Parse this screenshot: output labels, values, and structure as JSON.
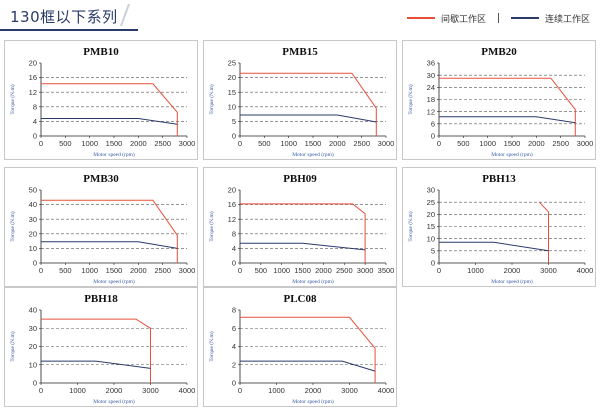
{
  "header": {
    "title": "130框以下系列",
    "legend": [
      {
        "label": "间歇工作区",
        "color": "#e8503a"
      },
      {
        "label": "连续工作区",
        "color": "#2a3a6b"
      }
    ]
  },
  "colors": {
    "intermittent": "#e8503a",
    "continuous": "#2a3a6b",
    "grid": "#555555"
  },
  "chart_data": [
    {
      "type": "line",
      "title": "PMB10",
      "xlabel": "Motor speed (rpm)",
      "ylabel": "Torque (N.m)",
      "xlim": [
        0,
        3000
      ],
      "ylim": [
        0,
        20
      ],
      "xticks": [
        0,
        500,
        1000,
        1500,
        2000,
        2500,
        3000
      ],
      "yticks": [
        0,
        4,
        8,
        12,
        16,
        20
      ],
      "hlines": [
        16,
        12,
        8,
        4
      ],
      "series": [
        {
          "name": "间歇工作区",
          "x": [
            0,
            2300,
            2800,
            2800
          ],
          "y": [
            14.3,
            14.3,
            6.5,
            0
          ]
        },
        {
          "name": "连续工作区",
          "x": [
            0,
            2000,
            2800
          ],
          "y": [
            4.8,
            4.8,
            3.2
          ]
        }
      ]
    },
    {
      "type": "line",
      "title": "PMB15",
      "xlabel": "Motor speed (rpm)",
      "ylabel": "Torque (N.m)",
      "xlim": [
        0,
        3000
      ],
      "ylim": [
        0,
        25
      ],
      "xticks": [
        0,
        500,
        1000,
        1500,
        2000,
        2500,
        3000
      ],
      "yticks": [
        0,
        5,
        10,
        15,
        20,
        25
      ],
      "hlines": [
        20,
        15,
        10,
        5
      ],
      "series": [
        {
          "name": "间歇工作区",
          "x": [
            0,
            2300,
            2800,
            2800
          ],
          "y": [
            21.5,
            21.5,
            9.5,
            0
          ]
        },
        {
          "name": "连续工作区",
          "x": [
            0,
            2000,
            2800
          ],
          "y": [
            7.2,
            7.2,
            4.8
          ]
        }
      ]
    },
    {
      "type": "line",
      "title": "PMB20",
      "xlabel": "Motor speed (rpm)",
      "ylabel": "Torque (N.m)",
      "xlim": [
        0,
        3000
      ],
      "ylim": [
        0,
        36
      ],
      "xticks": [
        0,
        500,
        1000,
        1500,
        2000,
        2500,
        3000
      ],
      "yticks": [
        0,
        6,
        12,
        18,
        24,
        30,
        36
      ],
      "hlines": [
        30,
        24,
        18,
        12,
        6
      ],
      "series": [
        {
          "name": "间歇工作区",
          "x": [
            0,
            2300,
            2800,
            2800
          ],
          "y": [
            28.5,
            28.5,
            13,
            0
          ]
        },
        {
          "name": "连续工作区",
          "x": [
            0,
            2000,
            2800
          ],
          "y": [
            9.5,
            9.5,
            6.5
          ]
        }
      ]
    },
    {
      "type": "line",
      "title": "PMB30",
      "xlabel": "Motor speed (rpm)",
      "ylabel": "Torque (N.m)",
      "xlim": [
        0,
        3000
      ],
      "ylim": [
        0,
        50
      ],
      "xticks": [
        0,
        500,
        1000,
        1500,
        2000,
        2500,
        3000
      ],
      "yticks": [
        0,
        10,
        20,
        30,
        40,
        50
      ],
      "hlines": [
        40,
        30,
        20,
        10
      ],
      "series": [
        {
          "name": "间歇工作区",
          "x": [
            0,
            2300,
            2800,
            2800
          ],
          "y": [
            43,
            43,
            19,
            0
          ]
        },
        {
          "name": "连续工作区",
          "x": [
            0,
            2000,
            2800
          ],
          "y": [
            14.5,
            14.5,
            10
          ]
        }
      ]
    },
    {
      "type": "line",
      "title": "PBH09",
      "xlabel": "Motor speed (rpm)",
      "ylabel": "Torque (N.m)",
      "xlim": [
        0,
        3500
      ],
      "ylim": [
        0,
        20
      ],
      "xticks": [
        0,
        500,
        1000,
        1500,
        2000,
        2500,
        3000,
        3500
      ],
      "yticks": [
        0,
        4,
        8,
        12,
        16,
        20
      ],
      "hlines": [
        16,
        12,
        8,
        4
      ],
      "series": [
        {
          "name": "间歇工作区",
          "x": [
            0,
            2700,
            3000,
            3000
          ],
          "y": [
            16.2,
            16.2,
            13.5,
            0
          ]
        },
        {
          "name": "连续工作区",
          "x": [
            0,
            1500,
            3000
          ],
          "y": [
            5.4,
            5.4,
            3.6
          ]
        }
      ]
    },
    {
      "type": "line",
      "title": "PBH13",
      "xlabel": "Motor speed (rpm)",
      "ylabel": "Torque (N.m)",
      "xlim": [
        0,
        4000
      ],
      "ylim": [
        0,
        30
      ],
      "xticks": [
        0,
        1000,
        2000,
        3000,
        4000
      ],
      "yticks": [
        0,
        5,
        10,
        15,
        20,
        25,
        30
      ],
      "hlines": [
        25,
        20,
        15,
        10,
        5
      ],
      "series": [
        {
          "name": "间歇工作区",
          "x": [
            2750,
            3000,
            3000
          ],
          "y": [
            25,
            21,
            0
          ]
        },
        {
          "name": "连续工作区",
          "x": [
            0,
            1500,
            3000
          ],
          "y": [
            8.5,
            8.5,
            5
          ]
        }
      ]
    },
    {
      "type": "line",
      "title": "PBH18",
      "xlabel": "Motor speed (rpm)",
      "ylabel": "Torque (N.m)",
      "xlim": [
        0,
        4000
      ],
      "ylim": [
        0,
        40
      ],
      "xticks": [
        0,
        1000,
        2000,
        3000,
        4000
      ],
      "yticks": [
        0,
        10,
        20,
        30,
        40
      ],
      "hlines": [
        30,
        20,
        10
      ],
      "series": [
        {
          "name": "间歇工作区",
          "x": [
            0,
            2600,
            3000,
            3000
          ],
          "y": [
            35,
            35,
            30,
            0
          ]
        },
        {
          "name": "连续工作区",
          "x": [
            0,
            1500,
            3000
          ],
          "y": [
            12,
            12,
            8
          ]
        }
      ]
    },
    {
      "type": "line",
      "title": "PLC08",
      "xlabel": "Motor speed (rpm)",
      "ylabel": "Torque (N.m)",
      "xlim": [
        0,
        4000
      ],
      "ylim": [
        0,
        8
      ],
      "xticks": [
        0,
        1000,
        2000,
        3000,
        4000
      ],
      "yticks": [
        0,
        2,
        4,
        6,
        8
      ],
      "hlines": [
        6,
        4,
        2
      ],
      "series": [
        {
          "name": "间歇工作区",
          "x": [
            0,
            3000,
            3700,
            3700
          ],
          "y": [
            7.2,
            7.2,
            3.8,
            0
          ]
        },
        {
          "name": "连续工作区",
          "x": [
            0,
            2800,
            3700
          ],
          "y": [
            2.4,
            2.4,
            1.3
          ]
        }
      ]
    }
  ]
}
